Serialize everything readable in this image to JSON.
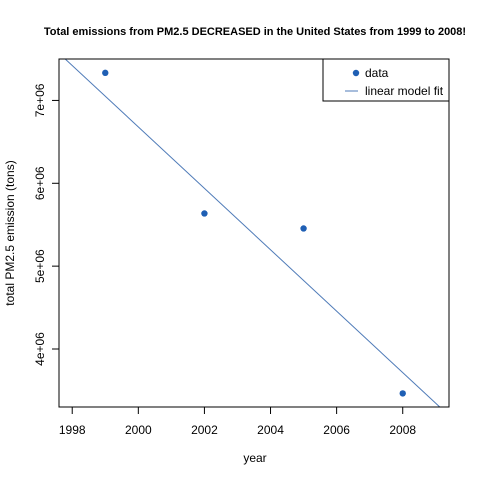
{
  "chart_data": {
    "type": "scatter",
    "title": "Total emissions from PM2.5 DECREASED in the United States from 1999 to 2008!",
    "xlabel": "year",
    "ylabel": "total PM2.5 emission (tons)",
    "xlim": [
      1997.6,
      2009.4
    ],
    "ylim": [
      3300000,
      7500000
    ],
    "x_ticks": [
      1998,
      2000,
      2002,
      2004,
      2006,
      2008
    ],
    "x_tick_labels": [
      "1998",
      "2000",
      "2002",
      "2004",
      "2006",
      "2008"
    ],
    "y_ticks": [
      4000000,
      5000000,
      6000000,
      7000000
    ],
    "y_tick_labels": [
      "4e+06",
      "5e+06",
      "6e+06",
      "7e+06"
    ],
    "series": [
      {
        "name": "data",
        "kind": "points",
        "color": "#1f5fb4",
        "x": [
          1999,
          2002,
          2005,
          2008
        ],
        "y": [
          7332967,
          5635780,
          5454703,
          3464206
        ]
      },
      {
        "name": "linear model fit",
        "kind": "line",
        "color": "#4f7bb8",
        "intercept": 747840000,
        "slope": -370580
      }
    ],
    "legend": {
      "position": "top-right",
      "entries": [
        "data",
        "linear model fit"
      ]
    }
  }
}
